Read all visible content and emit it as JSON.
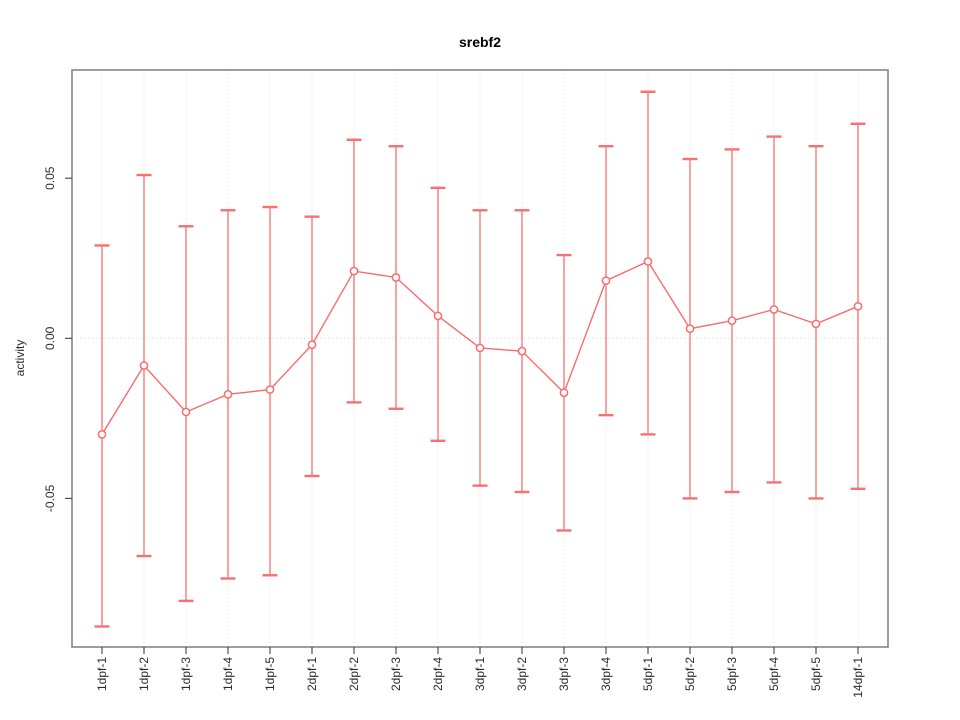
{
  "page": {
    "title": "srebf2"
  },
  "chart_data": {
    "type": "line",
    "subtype": "points-with-error-bars",
    "title": "srebf2",
    "xlabel": "",
    "ylabel": "activity",
    "categories": [
      "1dpf-1",
      "1dpf-2",
      "1dpf-3",
      "1dpf-4",
      "1dpf-5",
      "2dpf-1",
      "2dpf-2",
      "2dpf-3",
      "2dpf-4",
      "3dpf-1",
      "3dpf-2",
      "3dpf-3",
      "3dpf-4",
      "5dpf-1",
      "5dpf-2",
      "5dpf-3",
      "5dpf-4",
      "5dpf-5",
      "14dpf-1"
    ],
    "series": [
      {
        "name": "activity",
        "values": [
          -0.03,
          -0.0085,
          -0.023,
          -0.0175,
          -0.016,
          -0.002,
          0.021,
          0.019,
          0.007,
          -0.003,
          -0.004,
          -0.017,
          0.018,
          0.024,
          0.003,
          0.0055,
          0.009,
          0.0045,
          0.01
        ],
        "upper": [
          0.029,
          0.051,
          0.035,
          0.04,
          0.041,
          0.038,
          0.062,
          0.06,
          0.047,
          0.04,
          0.04,
          0.026,
          0.06,
          0.077,
          0.056,
          0.059,
          0.063,
          0.06,
          0.067
        ],
        "lower": [
          -0.09,
          -0.068,
          -0.082,
          -0.075,
          -0.074,
          -0.043,
          -0.02,
          -0.022,
          -0.032,
          -0.046,
          -0.048,
          -0.06,
          -0.024,
          -0.03,
          -0.05,
          -0.048,
          -0.045,
          -0.05,
          -0.047
        ]
      }
    ],
    "yticks": [
      0.05,
      0.0,
      -0.05
    ],
    "ytick_labels": [
      "0.05",
      "0.00",
      "-0.05"
    ],
    "ylim": [
      -0.0964,
      0.0838
    ],
    "grid": {
      "vertical_dotted_per_category": true,
      "horizontal_dotted_at_zero": true
    },
    "legend": null,
    "marker": "open-circle",
    "colors": {
      "error_bar": "#f8a2a2",
      "error_cap": "#f87070",
      "series_line": "#f86c6c",
      "marker_stroke": "#f86c6c",
      "marker_fill": "#ffffff",
      "grid": "#d9d9d9",
      "frame": "#7d7d7d",
      "tick": "#4f4f4f",
      "text": "#2b2b2b"
    }
  }
}
